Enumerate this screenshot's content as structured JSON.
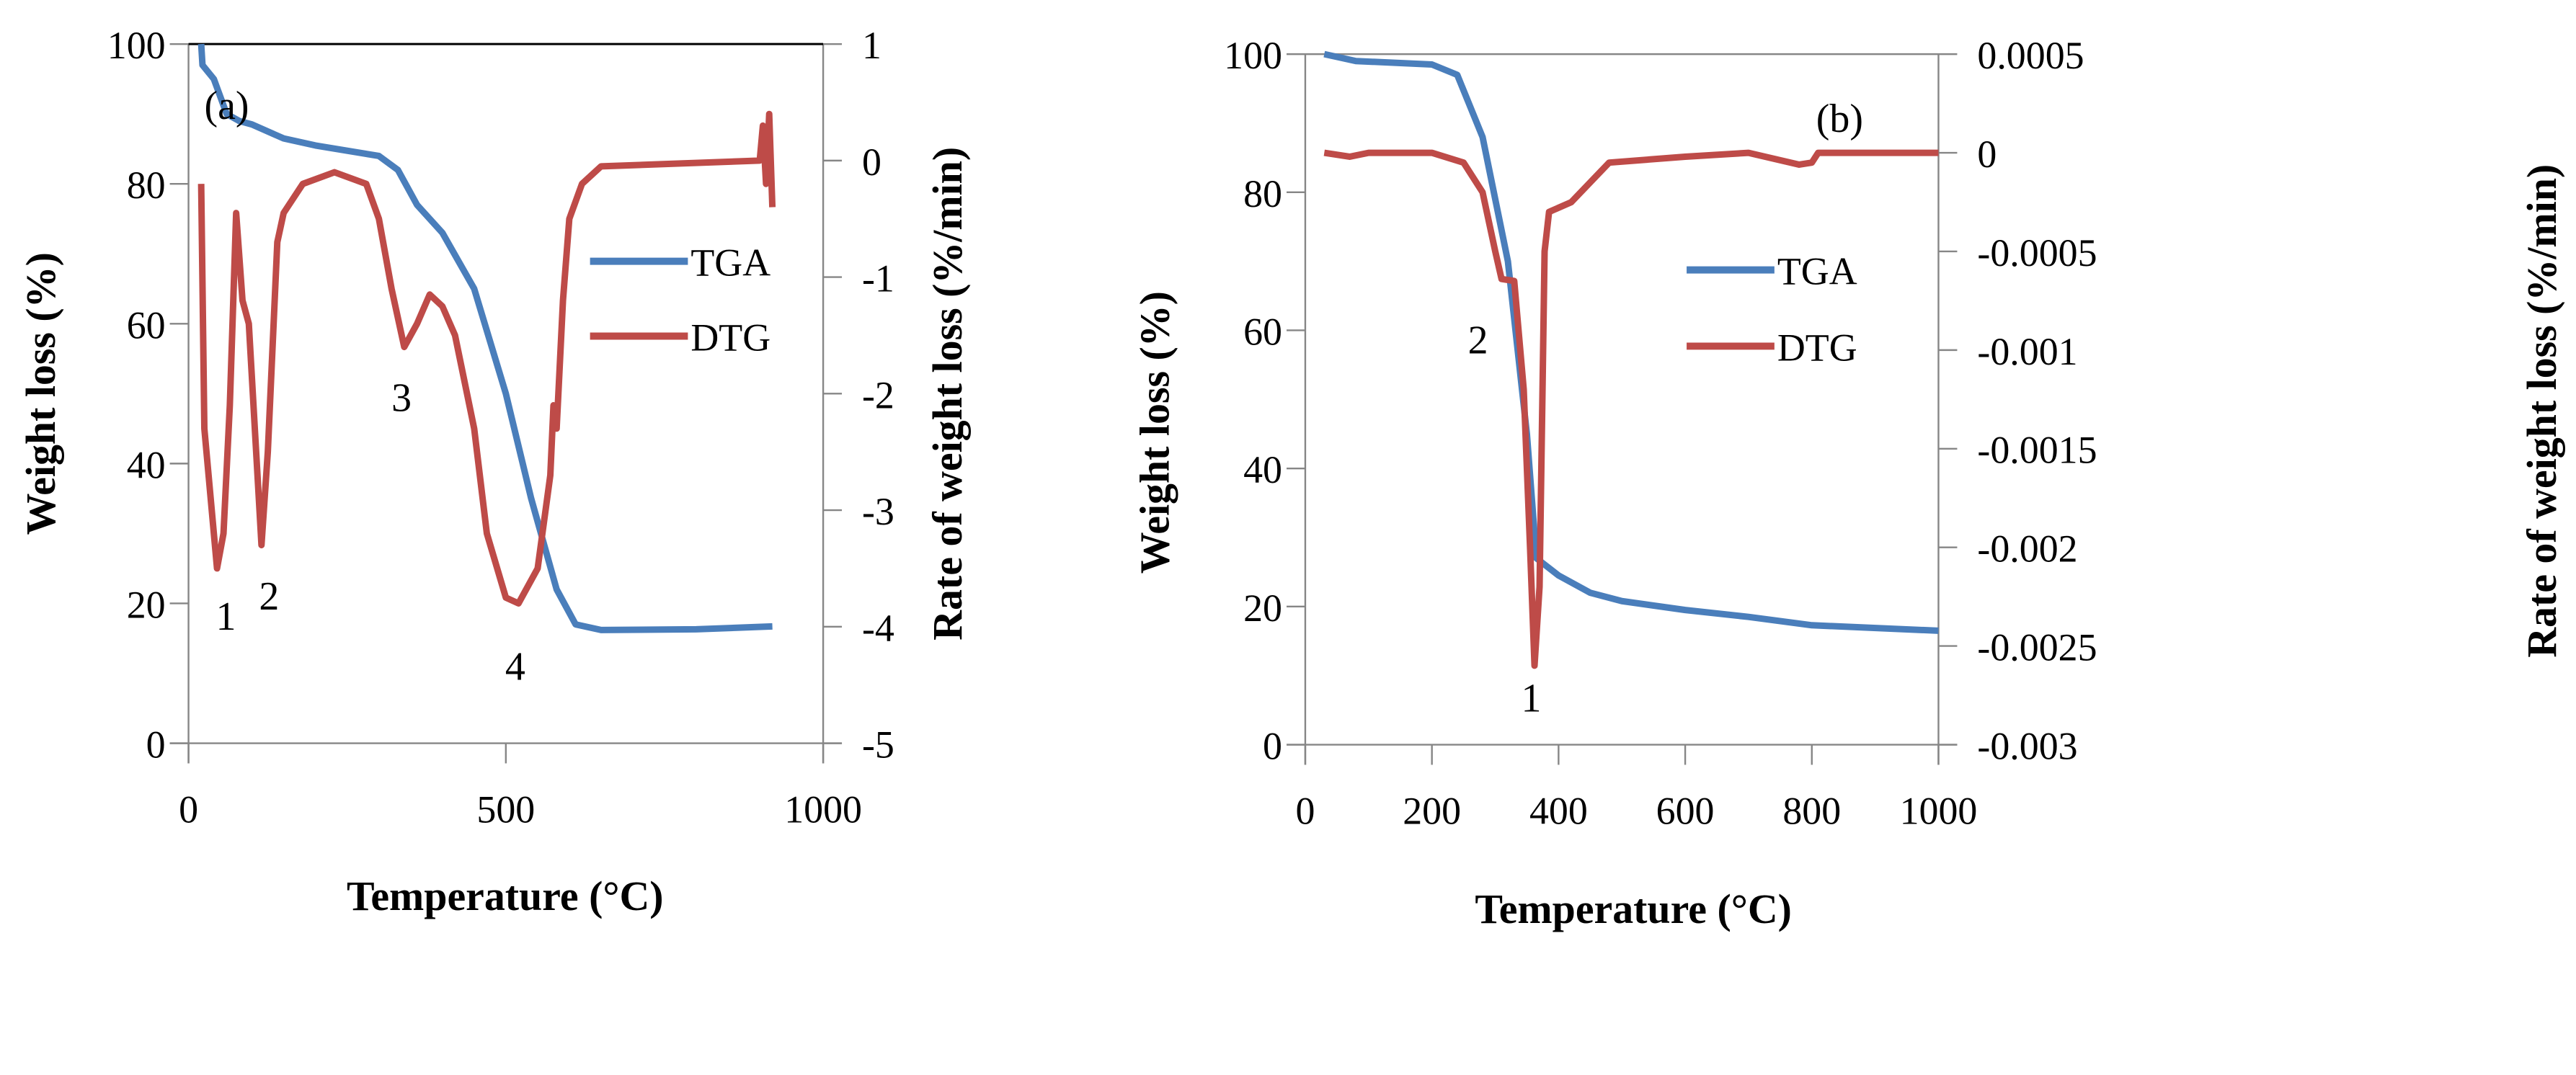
{
  "chart_data": [
    {
      "type": "line",
      "panel_label": "(a)",
      "xlabel": "Temperature (°C)",
      "ylabel": "Weight loss (%)",
      "y2label": "Rate of weight loss (%/min)",
      "xlim": [
        0,
        1000
      ],
      "ylim": [
        0,
        100
      ],
      "y2lim": [
        -5,
        1
      ],
      "xticks": [
        "0",
        "500",
        "1000"
      ],
      "yticks": [
        "0",
        "20",
        "40",
        "60",
        "80",
        "100"
      ],
      "y2ticks": [
        "-5",
        "-4",
        "-3",
        "-2",
        "-1",
        "0",
        "1"
      ],
      "legend": [
        "TGA",
        "DTG"
      ],
      "legend_position": "right",
      "annotations": [
        "1",
        "2",
        "3",
        "4"
      ],
      "series": [
        {
          "name": "TGA",
          "axis": "left",
          "color": "#4a7ebb",
          "x": [
            20,
            22,
            40,
            60,
            80,
            100,
            150,
            200,
            300,
            330,
            360,
            400,
            450,
            500,
            540,
            580,
            610,
            650,
            800,
            920
          ],
          "y": [
            100,
            97,
            95,
            90,
            89,
            88.5,
            86.5,
            85.5,
            84,
            82,
            77,
            73,
            65,
            50,
            35,
            22,
            17,
            16.2,
            16.3,
            16.7
          ]
        },
        {
          "name": "DTG",
          "axis": "right",
          "color": "#be4b48",
          "x": [
            20,
            25,
            45,
            55,
            65,
            75,
            85,
            95,
            115,
            125,
            140,
            150,
            180,
            230,
            280,
            300,
            320,
            340,
            360,
            380,
            400,
            420,
            450,
            470,
            500,
            520,
            550,
            570,
            575,
            580,
            590,
            600,
            620,
            650,
            900,
            905,
            910,
            915,
            920
          ],
          "y": [
            -0.2,
            -2.3,
            -3.5,
            -3.2,
            -2.1,
            -0.45,
            -1.2,
            -1.4,
            -3.3,
            -2.5,
            -0.7,
            -0.45,
            -0.2,
            -0.1,
            -0.2,
            -0.5,
            -1.1,
            -1.6,
            -1.4,
            -1.15,
            -1.25,
            -1.5,
            -2.3,
            -3.2,
            -3.75,
            -3.8,
            -3.5,
            -2.7,
            -2.1,
            -2.3,
            -1.2,
            -0.5,
            -0.2,
            -0.05,
            0.0,
            0.3,
            -0.2,
            0.4,
            -0.4
          ]
        }
      ]
    },
    {
      "type": "line",
      "panel_label": "(b)",
      "xlabel": "Temperature (°C)",
      "ylabel": "Weight loss (%)",
      "y2label": "Rate of weight loss (%/min)",
      "xlim": [
        0,
        1000
      ],
      "ylim": [
        0,
        100
      ],
      "y2lim": [
        -0.003,
        0.0005
      ],
      "xticks": [
        "0",
        "200",
        "400",
        "600",
        "800",
        "1000"
      ],
      "yticks": [
        "0",
        "20",
        "40",
        "60",
        "80",
        "100"
      ],
      "y2ticks": [
        "-0.003",
        "-0.0025",
        "-0.002",
        "-0.0015",
        "-0.001",
        "-0.0005",
        "0",
        "0.0005"
      ],
      "legend": [
        "TGA",
        "DTG"
      ],
      "legend_position": "right",
      "annotations": [
        "1",
        "2"
      ],
      "series": [
        {
          "name": "TGA",
          "axis": "left",
          "color": "#4a7ebb",
          "x": [
            30,
            80,
            200,
            240,
            280,
            320,
            350,
            365,
            400,
            450,
            500,
            600,
            700,
            800,
            1000
          ],
          "y": [
            100,
            99,
            98.5,
            97,
            88,
            70,
            45,
            27,
            24.5,
            22,
            20.8,
            19.5,
            18.5,
            17.3,
            16.5
          ]
        },
        {
          "name": "DTG",
          "axis": "right",
          "color": "#be4b48",
          "x": [
            30,
            70,
            100,
            200,
            250,
            280,
            300,
            310,
            330,
            345,
            355,
            362,
            370,
            378,
            385,
            420,
            480,
            600,
            700,
            780,
            800,
            810,
            1000
          ],
          "y": [
            0,
            -2e-05,
            0,
            0,
            -5e-05,
            -0.0002,
            -0.0005,
            -0.00064,
            -0.00065,
            -0.0012,
            -0.002,
            -0.0026,
            -0.0022,
            -0.0005,
            -0.0003,
            -0.00025,
            -5e-05,
            -2e-05,
            0,
            -6e-05,
            -5e-05,
            0,
            0
          ]
        }
      ]
    }
  ]
}
